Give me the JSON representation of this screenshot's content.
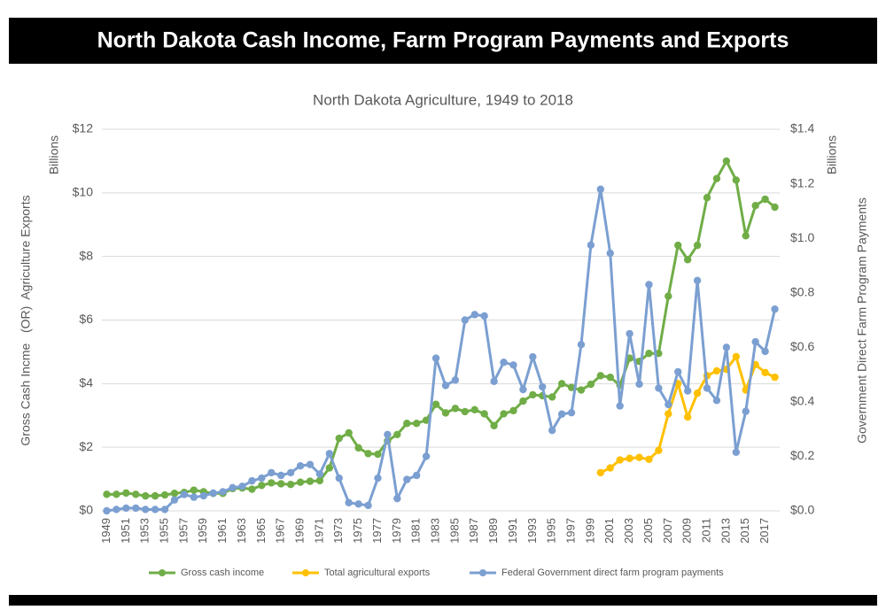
{
  "header": {
    "title": "North Dakota Cash Income, Farm Program Payments and Exports"
  },
  "chart_data": {
    "type": "line",
    "title": "North Dakota Agriculture, 1949 to 2018",
    "y_label": "Gross Cash Incme   (OR)  Agriculture Exports",
    "y_unit": "Billions",
    "y2_label": "Government Direct Farm Program Payments",
    "y2_unit": "Billions",
    "categories": [
      "1949",
      null,
      "1951",
      null,
      "1953",
      null,
      "1955",
      null,
      "1957",
      null,
      "1959",
      null,
      "1961",
      null,
      "1963",
      null,
      "1965",
      null,
      "1967",
      null,
      "1969",
      null,
      "1971",
      null,
      "1973",
      null,
      "1975",
      null,
      "1977",
      null,
      "1979",
      null,
      "1981",
      null,
      "1983",
      null,
      "1985",
      null,
      "1987",
      null,
      "1989",
      null,
      "1991",
      null,
      "1993",
      null,
      "1995",
      null,
      "1997",
      null,
      "1999",
      null,
      "2001",
      null,
      "2003",
      null,
      "2005",
      null,
      "2007",
      null,
      "2009",
      null,
      "2011",
      null,
      "2013",
      null,
      "2015",
      null,
      "2017",
      null
    ],
    "ylim": [
      0,
      12
    ],
    "yticks": [
      {
        "value": 0,
        "label": "$0"
      },
      {
        "value": 2,
        "label": "$2"
      },
      {
        "value": 4,
        "label": "$4"
      },
      {
        "value": 6,
        "label": "$6"
      },
      {
        "value": 8,
        "label": "$8"
      },
      {
        "value": 10,
        "label": "$10"
      },
      {
        "value": 12,
        "label": "$12"
      }
    ],
    "y2lim": [
      0,
      1.4
    ],
    "y2ticks": [
      {
        "value": 0,
        "label": "$0.0"
      },
      {
        "value": 0.2,
        "label": "$0.2"
      },
      {
        "value": 0.4,
        "label": "$0.4"
      },
      {
        "value": 0.6,
        "label": "$0.6"
      },
      {
        "value": 0.8,
        "label": "$0.8"
      },
      {
        "value": 1.0,
        "label": "$1.0"
      },
      {
        "value": 1.2,
        "label": "$1.2"
      },
      {
        "value": 1.4,
        "label": "$1.4"
      }
    ],
    "grid": true,
    "legend": "bottom",
    "series": [
      {
        "name": "Gross cash income",
        "color": "#70ad47",
        "values": [
          0.52,
          0.52,
          0.56,
          0.52,
          0.47,
          0.47,
          0.5,
          0.55,
          0.58,
          0.65,
          0.6,
          0.55,
          0.55,
          0.7,
          0.72,
          0.68,
          0.8,
          0.88,
          0.85,
          0.83,
          0.9,
          0.93,
          0.95,
          1.35,
          2.28,
          2.45,
          1.98,
          1.8,
          1.78,
          2.2,
          2.4,
          2.75,
          2.75,
          2.85,
          3.35,
          3.08,
          3.22,
          3.12,
          3.18,
          3.05,
          2.68,
          3.05,
          3.15,
          3.45,
          3.65,
          3.62,
          3.58,
          4.0,
          3.88,
          3.8,
          3.98,
          4.25,
          4.2,
          3.95,
          4.8,
          4.7,
          4.95,
          4.95,
          6.75,
          8.35,
          7.9,
          8.35,
          9.85,
          10.45,
          11.0,
          10.4,
          8.65,
          9.6,
          9.8,
          9.55
        ]
      },
      {
        "name": "Total agricultural exports",
        "color": "#ffc000",
        "values": [
          null,
          null,
          null,
          null,
          null,
          null,
          null,
          null,
          null,
          null,
          null,
          null,
          null,
          null,
          null,
          null,
          null,
          null,
          null,
          null,
          null,
          null,
          null,
          null,
          null,
          null,
          null,
          null,
          null,
          null,
          null,
          null,
          null,
          null,
          null,
          null,
          null,
          null,
          null,
          null,
          null,
          null,
          null,
          null,
          null,
          null,
          null,
          null,
          null,
          null,
          null,
          1.2,
          1.35,
          1.6,
          1.65,
          1.68,
          1.62,
          1.9,
          3.05,
          4.0,
          2.95,
          3.7,
          4.25,
          4.4,
          4.45,
          4.85,
          3.8,
          4.6,
          4.35,
          4.2
        ]
      },
      {
        "name": "Federal Government direct farm program payments",
        "color": "#7b9fd1",
        "axis": "y2",
        "values": [
          0.0,
          0.005,
          0.01,
          0.01,
          0.005,
          0.005,
          0.005,
          0.04,
          0.06,
          0.05,
          0.055,
          0.065,
          0.07,
          0.085,
          0.09,
          0.11,
          0.12,
          0.14,
          0.13,
          0.14,
          0.165,
          0.17,
          0.135,
          0.21,
          0.12,
          0.03,
          0.025,
          0.02,
          0.12,
          0.28,
          0.045,
          0.115,
          0.13,
          0.2,
          0.56,
          0.46,
          0.48,
          0.7,
          0.72,
          0.715,
          0.475,
          0.545,
          0.535,
          0.445,
          0.565,
          0.455,
          0.295,
          0.355,
          0.36,
          0.61,
          0.975,
          1.18,
          0.945,
          0.385,
          0.65,
          0.465,
          0.83,
          0.45,
          0.39,
          0.51,
          0.44,
          0.845,
          0.45,
          0.405,
          0.6,
          0.215,
          0.365,
          0.62,
          0.585,
          0.74
        ]
      }
    ]
  }
}
